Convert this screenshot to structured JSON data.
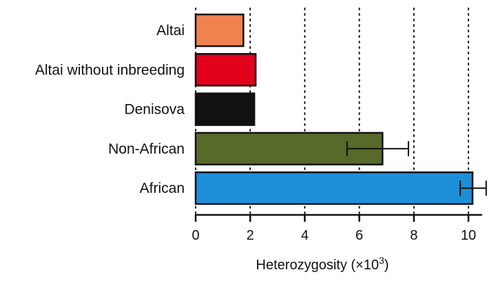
{
  "chart_data": {
    "type": "bar",
    "orientation": "horizontal",
    "categories": [
      "Altai",
      "Altai without inbreeding",
      "Denisova",
      "Non-African",
      "African"
    ],
    "values": [
      1.75,
      2.2,
      2.15,
      6.85,
      10.15
    ],
    "error_low": [
      null,
      null,
      null,
      5.55,
      9.7
    ],
    "error_high": [
      null,
      null,
      null,
      7.8,
      10.65
    ],
    "colors": [
      "#f0824f",
      "#e3001b",
      "#111111",
      "#576a2a",
      "#1d8fd8"
    ],
    "xlabel_main": "Heterozygosity (×10",
    "xlabel_sup": "3",
    "xlabel_end": ")",
    "xlim": [
      0,
      10.5
    ],
    "xticks": [
      "0",
      "2",
      "4",
      "6",
      "8",
      "10"
    ],
    "grid": "vertical dotted"
  }
}
